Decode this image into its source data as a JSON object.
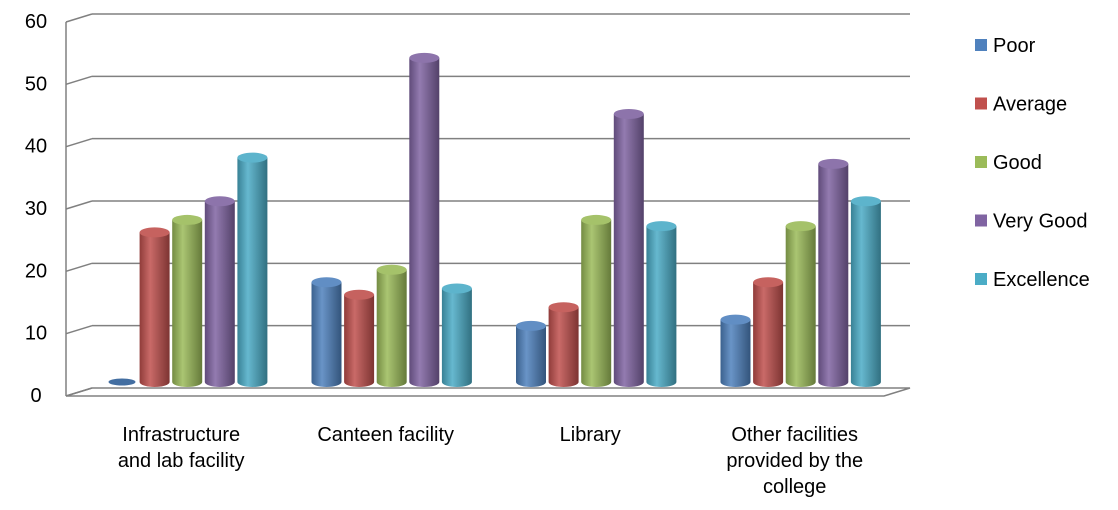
{
  "chart_data": {
    "type": "bar",
    "style": "3d-cylinder",
    "categories": [
      [
        "Infrastructure",
        "and lab facility"
      ],
      [
        "Canteen facility"
      ],
      [
        "Library"
      ],
      [
        "Other facilities",
        "provided by the",
        "college"
      ]
    ],
    "series": [
      {
        "name": "Poor",
        "color": "#4F81BD",
        "values": [
          0,
          16,
          9,
          10
        ]
      },
      {
        "name": "Average",
        "color": "#C0504D",
        "values": [
          24,
          14,
          12,
          16
        ]
      },
      {
        "name": "Good",
        "color": "#9BBB59",
        "values": [
          26,
          18,
          26,
          25
        ]
      },
      {
        "name": "Very Good",
        "color": "#8064A2",
        "values": [
          29,
          52,
          43,
          35
        ]
      },
      {
        "name": "Excellence",
        "color": "#4BACC6",
        "values": [
          36,
          15,
          25,
          29
        ]
      }
    ],
    "yticks": [
      0,
      10,
      20,
      30,
      40,
      50,
      60
    ],
    "ylim": [
      0,
      60
    ],
    "grid": true,
    "legend": "right"
  }
}
